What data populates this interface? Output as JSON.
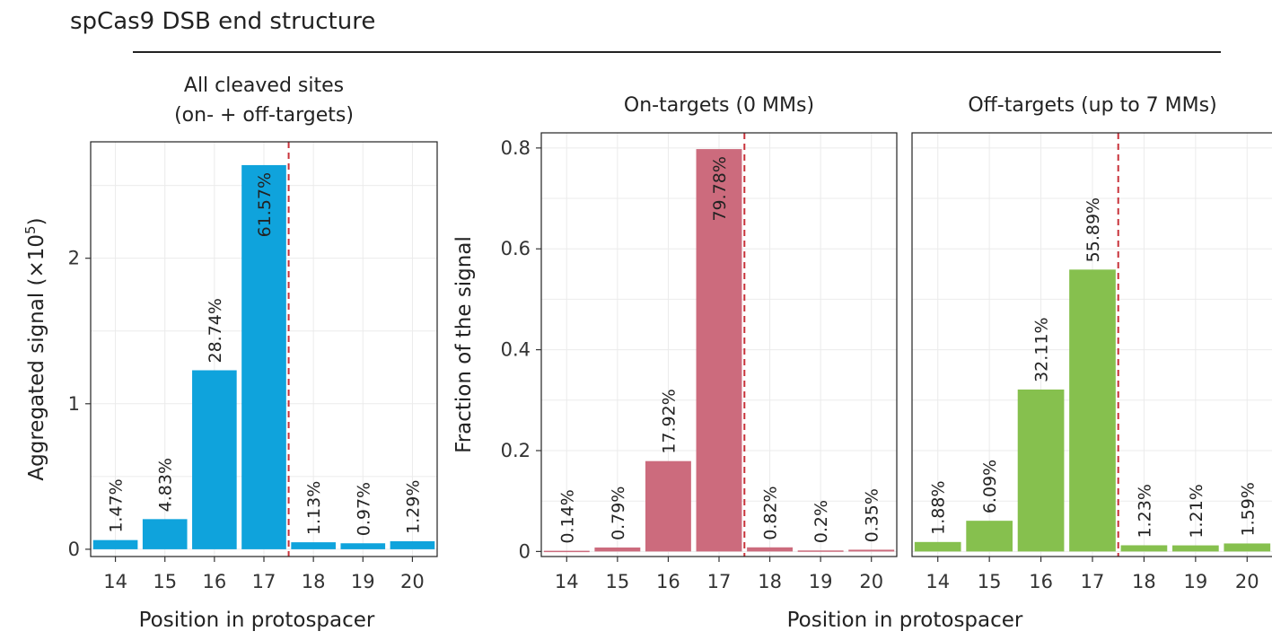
{
  "figure": {
    "title": "spCas9 DSB end structure",
    "shared_xlabel": "Position in protospacer"
  },
  "chart_data": [
    {
      "type": "bar",
      "title_lines": [
        "All cleaved sites",
        "(on- + off-targets)"
      ],
      "xlabel": "Position in protospacer",
      "ylabel_main": "Aggregated signal (×10",
      "ylabel_sup": "5",
      "ylabel_tail": ")",
      "categories": [
        "14",
        "15",
        "16",
        "17",
        "18",
        "19",
        "20"
      ],
      "values": [
        0.063,
        0.207,
        1.23,
        2.64,
        0.048,
        0.041,
        0.055
      ],
      "labels": [
        "1.47%",
        "4.83%",
        "28.74%",
        "61.57%",
        "1.13%",
        "0.97%",
        "1.29%"
      ],
      "yticks": [
        0,
        1,
        2
      ],
      "ytick_labels": [
        "0",
        "1",
        "2"
      ],
      "ylim": [
        -0.05,
        2.8
      ],
      "color": "#0fa3dc",
      "dashed_line_between": [
        3,
        4
      ]
    },
    {
      "type": "bar",
      "title_lines": [
        "On-targets (0 MMs)"
      ],
      "ylabel": "Fraction of the signal",
      "categories": [
        "14",
        "15",
        "16",
        "17",
        "18",
        "19",
        "20"
      ],
      "values": [
        0.0014,
        0.0079,
        0.1792,
        0.7978,
        0.0082,
        0.002,
        0.0035
      ],
      "labels": [
        "0.14%",
        "0.79%",
        "17.92%",
        "79.78%",
        "0.82%",
        "0.2%",
        "0.35%"
      ],
      "yticks": [
        0,
        0.2,
        0.4,
        0.6,
        0.8
      ],
      "ytick_labels": [
        "0",
        "0.2",
        "0.4",
        "0.6",
        "0.8"
      ],
      "ylim": [
        -0.01,
        0.83
      ],
      "color": "#cc6b7d",
      "dashed_line_between": [
        3,
        4
      ]
    },
    {
      "type": "bar",
      "title_lines": [
        "Off-targets (up to 7 MMs)"
      ],
      "categories": [
        "14",
        "15",
        "16",
        "17",
        "18",
        "19",
        "20"
      ],
      "values": [
        0.0188,
        0.0609,
        0.3211,
        0.5589,
        0.0123,
        0.0121,
        0.0159
      ],
      "labels": [
        "1.88%",
        "6.09%",
        "32.11%",
        "55.89%",
        "1.23%",
        "1.21%",
        "1.59%"
      ],
      "ylim": [
        -0.01,
        0.83
      ],
      "color": "#86c04e",
      "dashed_line_between": [
        3,
        4
      ]
    }
  ]
}
